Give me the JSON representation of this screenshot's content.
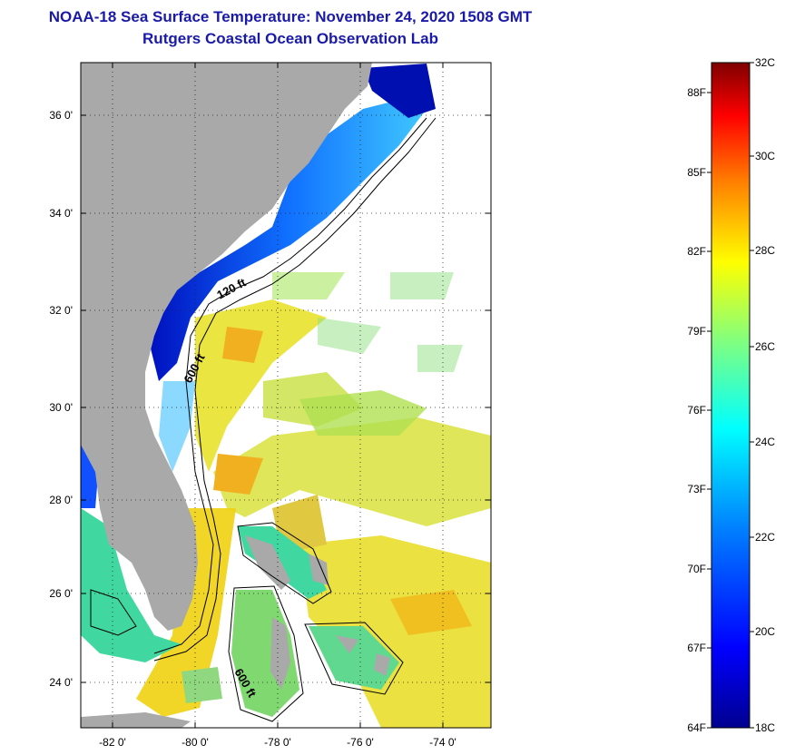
{
  "title": {
    "line1": "NOAA-18 Sea Surface Temperature:  November 24, 2020 1508 GMT",
    "line2": "Rutgers Coastal Ocean Observation Lab"
  },
  "map": {
    "lat_ticks": [
      "36 0'",
      "34 0'",
      "32 0'",
      "30 0'",
      "28 0'",
      "26 0'",
      "24 0'"
    ],
    "lon_ticks": [
      "-82 0'",
      "-80 0'",
      "-78 0'",
      "-76 0'",
      "-74 0'"
    ],
    "contours": [
      "120 ft",
      "600 ft",
      "600 ft"
    ],
    "land_color": "#a9a9a9"
  },
  "colorbar": {
    "fahrenheit": [
      "88F",
      "85F",
      "82F",
      "79F",
      "76F",
      "73F",
      "70F",
      "67F",
      "64F"
    ],
    "celsius": [
      "32C",
      "30C",
      "28C",
      "26C",
      "24C",
      "22C",
      "20C",
      "18C"
    ],
    "colors": [
      "#7f0000",
      "#ff0000",
      "#ff8000",
      "#ffff00",
      "#80ff80",
      "#00ffff",
      "#0080ff",
      "#0000ff",
      "#00008f"
    ]
  }
}
